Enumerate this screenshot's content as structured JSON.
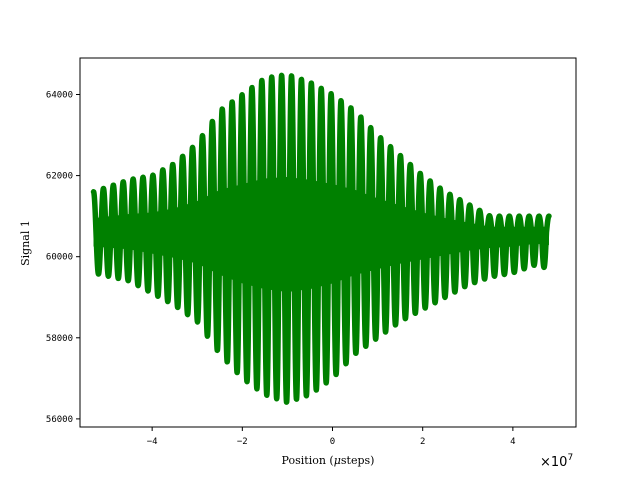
{
  "chart_data": {
    "type": "scatter",
    "title": "",
    "xlabel": "Position ($\\mu$steps)",
    "xlabel_prefix": "Position (",
    "xlabel_mu": "μ",
    "xlabel_suffix": "steps)",
    "ylabel": "Signal 1",
    "x_offset_text": "×10",
    "x_offset_exponent": "7",
    "xlim": [
      -5.6,
      5.4
    ],
    "ylim": [
      55800,
      64900
    ],
    "x_scale": 10000000,
    "xticks": [
      -4,
      -2,
      0,
      2,
      4
    ],
    "xtick_labels": [
      "−4",
      "−2",
      "0",
      "2",
      "4"
    ],
    "yticks": [
      56000,
      58000,
      60000,
      62000,
      64000
    ],
    "ytick_labels": [
      "56000",
      "58000",
      "60000",
      "62000",
      "64000"
    ],
    "grid": false,
    "color": "#008000",
    "series": [
      {
        "center": 60600,
        "x_range": [
          -5.3,
          4.8
        ],
        "fringe_count": 46,
        "description_of_points": "dense fringe pattern; upper envelope and lower envelope at fringe peaks",
        "envelope_x": [
          -5.3,
          -4.5,
          -4.0,
          -3.5,
          -3.0,
          -2.5,
          -2.0,
          -1.5,
          -1.0,
          -0.5,
          0.0,
          0.5,
          1.0,
          1.5,
          2.0,
          2.5,
          3.0,
          3.5,
          4.0,
          4.5,
          4.8
        ],
        "envelope_upper": [
          61600,
          61900,
          62000,
          62300,
          62800,
          63600,
          64000,
          64400,
          64500,
          64300,
          64000,
          63600,
          63000,
          62500,
          62000,
          61600,
          61300,
          61000,
          61000,
          61000,
          61000
        ],
        "envelope_lower": [
          59600,
          59400,
          59100,
          58800,
          58400,
          57600,
          57000,
          56600,
          56400,
          56600,
          57000,
          57600,
          58000,
          58400,
          58700,
          59000,
          59300,
          59500,
          59600,
          59800,
          59700
        ]
      }
    ]
  }
}
